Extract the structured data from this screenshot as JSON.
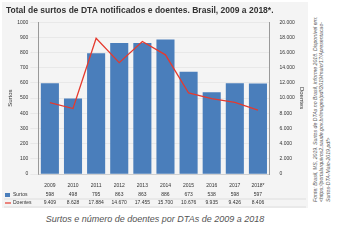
{
  "chart_data": {
    "type": "bar",
    "title": "Total de surtos de DTA notificados e doentes. Brasil, 2009 a 2018*.",
    "categories": [
      "2009",
      "2010",
      "2011",
      "2012",
      "2013",
      "2014",
      "2015",
      "2016",
      "2017",
      "2018*"
    ],
    "series": [
      {
        "name": "Surtos",
        "type": "bar",
        "color": "#4a7ebb",
        "values": [
          598,
          498,
          795,
          863,
          863,
          886,
          673,
          538,
          598,
          597
        ]
      },
      {
        "name": "Doentes",
        "type": "line",
        "axis": "y2",
        "color": "#e53a2e",
        "values": [
          9409,
          8628,
          17884,
          14670,
          17455,
          15700,
          10676,
          9935,
          9426,
          8406
        ],
        "value_labels": [
          "9.409",
          "8.628",
          "17.884",
          "14.670",
          "17.455",
          "15.700",
          "10.676",
          "9.935",
          "9.426",
          "8.406"
        ]
      }
    ],
    "y_label": "Surtos",
    "y2_label": "Doentes",
    "ylim": [
      0,
      1000
    ],
    "yticks": [
      0,
      100,
      200,
      300,
      400,
      500,
      600,
      700,
      800,
      900,
      1000
    ],
    "y2lim": [
      0,
      20000
    ],
    "y2ticks": [
      0,
      {
        "value": 2000,
        "label": "2.000"
      },
      {
        "value": 4000,
        "label": "4.000"
      },
      {
        "value": 6000,
        "label": "6.000"
      },
      {
        "value": 8000,
        "label": "8.000"
      },
      {
        "value": 10000,
        "label": "10.000"
      },
      {
        "value": 12000,
        "label": "12.000"
      },
      {
        "value": 14000,
        "label": "14.000"
      },
      {
        "value": 16000,
        "label": "16.000"
      },
      {
        "value": 18000,
        "label": "18.000"
      },
      {
        "value": 20000,
        "label": "20.000"
      }
    ],
    "grid": true,
    "legend": "bottom",
    "source": "Fonte: Brasil, MS, 2019. Surtos de DTAs no Brasil, informe 2018. Disponível em: <https://portalarquivos2.saude.gov.br/images/pdf/2019/maio/17/Apresentacao-Surtos-DTA-Maio-2019.pdf>",
    "caption": "Surtos e número de doentes por DTAs de 2009 a 2018"
  }
}
